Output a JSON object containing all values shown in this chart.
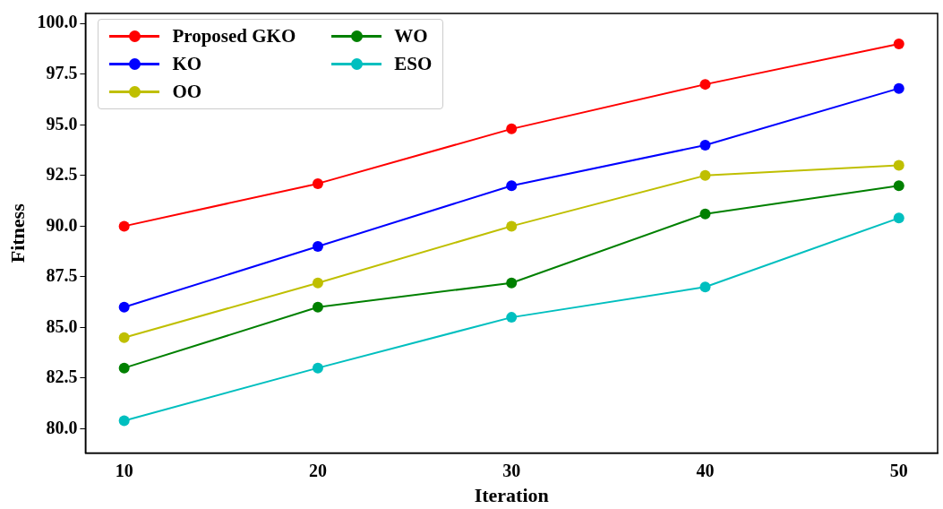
{
  "chart_data": {
    "type": "line",
    "xlabel": "Iteration",
    "ylabel": "Fitness",
    "x": [
      10,
      20,
      30,
      40,
      50
    ],
    "series": [
      {
        "name": "Proposed GKO",
        "color": "#ff0000",
        "values": [
          90,
          92.1,
          94.8,
          97,
          99
        ]
      },
      {
        "name": "KO",
        "color": "#0000ff",
        "values": [
          86,
          89,
          92,
          94,
          96.8
        ]
      },
      {
        "name": "OO",
        "color": "#bfbf00",
        "values": [
          84.5,
          87.2,
          90,
          92.5,
          93
        ]
      },
      {
        "name": "WO",
        "color": "#008000",
        "values": [
          83,
          86,
          87.2,
          90.6,
          92
        ]
      },
      {
        "name": "ESO",
        "color": "#00bfbf",
        "values": [
          80.4,
          83,
          85.5,
          87,
          90.4
        ]
      }
    ],
    "xlim": [
      8,
      52
    ],
    "xticks": [
      10,
      20,
      30,
      40,
      50
    ],
    "ylim": [
      78.8,
      100.5
    ],
    "yticks": [
      {
        "value": 80,
        "label": "80.0"
      },
      {
        "value": 82.5,
        "label": "82.5"
      },
      {
        "value": 85,
        "label": "85.0"
      },
      {
        "value": 87.5,
        "label": "87.5"
      },
      {
        "value": 90,
        "label": "90.0"
      },
      {
        "value": 92.5,
        "label": "92.5"
      },
      {
        "value": 95,
        "label": "95.0"
      },
      {
        "value": 97.5,
        "label": "97.5"
      },
      {
        "value": 100,
        "label": "100.0"
      }
    ],
    "grid": false,
    "legend": "top left",
    "marker": "circle",
    "line_style": "solid"
  }
}
